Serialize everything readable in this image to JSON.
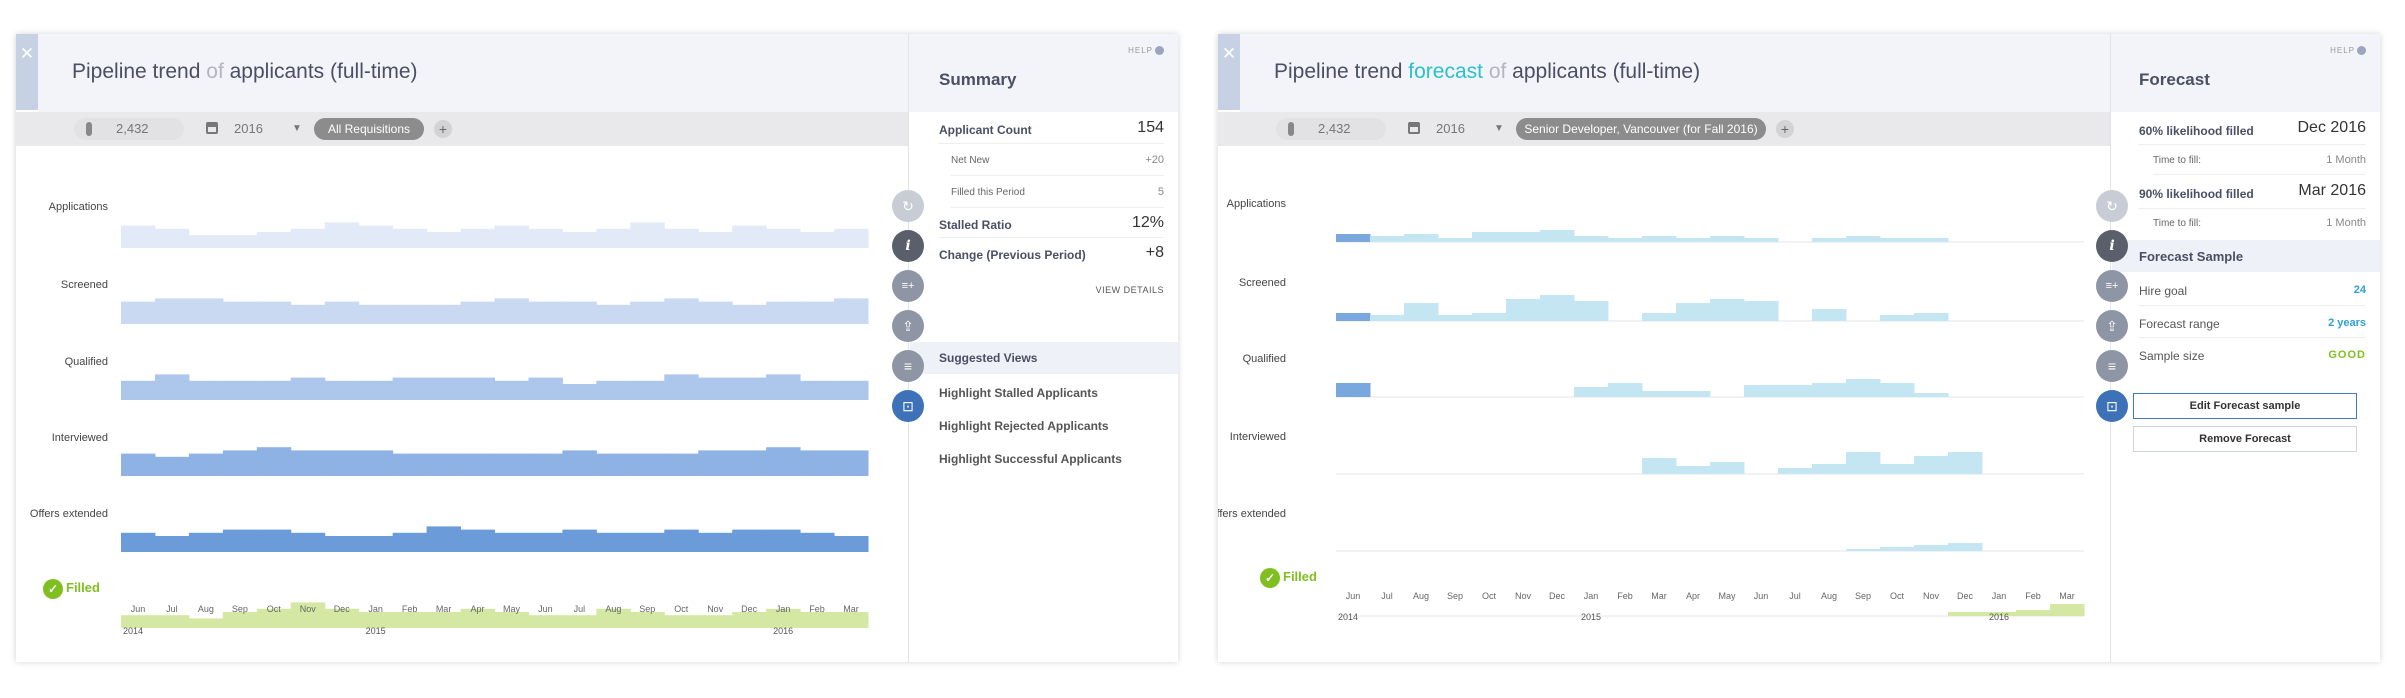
{
  "panels": [
    {
      "title_pre": "Pipeline trend",
      "title_hl": "",
      "title_of": "of",
      "title_post": "applicants (full-time)",
      "close": "✕",
      "count": "2,432",
      "year": "2016",
      "req": "All Requisitions",
      "plus": "+",
      "rows": [
        "Applications",
        "Screened",
        "Qualified",
        "Interviewed",
        "Offers extended"
      ],
      "filled": "Filled",
      "months": [
        "Jun",
        "Jul",
        "Aug",
        "Sep",
        "Oct",
        "Nov",
        "Dec",
        "Jan",
        "Feb",
        "Mar",
        "Apr",
        "May",
        "Jun",
        "Jul",
        "Aug",
        "Sep",
        "Oct",
        "Nov",
        "Dec",
        "Jan",
        "Feb",
        "Mar"
      ],
      "years": [
        "2014",
        "2015",
        "2016"
      ],
      "chart_data": {
        "type": "area",
        "colors": [
          "#e3eaf7",
          "#c9d9f2",
          "#adc6eb",
          "#8db2e3",
          "#6b9bd9",
          "#d4e8a3"
        ],
        "series": [
          {
            "values": [
              7,
              6,
              4,
              4,
              5,
              6,
              8,
              7,
              6,
              5,
              6,
              7,
              6,
              5,
              6,
              8,
              6,
              5,
              7,
              6,
              5,
              6
            ]
          },
          {
            "values": [
              7,
              8,
              8,
              7,
              7,
              6,
              7,
              6,
              6,
              6,
              7,
              8,
              7,
              7,
              6,
              7,
              8,
              7,
              6,
              7,
              7,
              8
            ]
          },
          {
            "values": [
              6,
              8,
              6,
              6,
              6,
              7,
              6,
              6,
              7,
              7,
              7,
              6,
              7,
              5,
              6,
              6,
              8,
              7,
              7,
              8,
              6,
              6
            ]
          },
          {
            "values": [
              7,
              6,
              7,
              8,
              9,
              8,
              8,
              8,
              7,
              7,
              7,
              7,
              7,
              8,
              7,
              7,
              7,
              8,
              8,
              9,
              8,
              8
            ]
          },
          {
            "values": [
              6,
              5,
              6,
              7,
              7,
              6,
              5,
              5,
              6,
              8,
              7,
              6,
              6,
              7,
              6,
              6,
              7,
              6,
              7,
              7,
              6,
              5
            ]
          },
          {
            "values": [
              4,
              4,
              3,
              5,
              6,
              8,
              6,
              5,
              5,
              5,
              6,
              5,
              4,
              4,
              6,
              5,
              4,
              4,
              5,
              6,
              5,
              5
            ]
          }
        ]
      }
    },
    {
      "title_pre": "Pipeline trend",
      "title_hl": "forecast",
      "title_of": "of",
      "title_post": "applicants (full-time)",
      "close": "✕",
      "count": "2,432",
      "year": "2016",
      "req": "Senior Developer, Vancouver (for Fall 2016)",
      "plus": "+",
      "rows": [
        "Applications",
        "Screened",
        "Qualified",
        "Interviewed",
        "Offers extended"
      ],
      "filled": "Filled",
      "months": [
        "Jun",
        "Jul",
        "Aug",
        "Sep",
        "Oct",
        "Nov",
        "Dec",
        "Jan",
        "Feb",
        "Mar",
        "Apr",
        "May",
        "Jun",
        "Jul",
        "Aug",
        "Sep",
        "Oct",
        "Nov",
        "Dec",
        "Jan",
        "Feb",
        "Mar"
      ],
      "years": [
        "2014",
        "2015",
        "2016"
      ],
      "chart_data": {
        "type": "area",
        "colors": [
          "#c4e6f3",
          "#c4e6f3",
          "#c4e6f3",
          "#c4e6f3",
          "#c4e6f3",
          "#d4e8a3"
        ],
        "highlight": "#7aa7dd",
        "series": [
          {
            "values": [
              4,
              3,
              4,
              2,
              5,
              5,
              6,
              3,
              2,
              3,
              2,
              3,
              2,
              0,
              2,
              3,
              2,
              2,
              0,
              0,
              0,
              0
            ]
          },
          {
            "values": [
              4,
              3,
              9,
              3,
              4,
              11,
              13,
              10,
              0,
              4,
              9,
              11,
              10,
              0,
              6,
              0,
              3,
              4,
              0,
              0,
              0,
              0
            ]
          },
          {
            "values": [
              7,
              0,
              0,
              0,
              0,
              0,
              0,
              5,
              7,
              3,
              3,
              0,
              6,
              6,
              7,
              9,
              7,
              2,
              0,
              0,
              0,
              0
            ]
          },
          {
            "values": [
              0,
              0,
              0,
              0,
              0,
              0,
              0,
              0,
              0,
              8,
              4,
              6,
              0,
              3,
              5,
              11,
              5,
              9,
              11,
              0,
              0,
              0
            ]
          },
          {
            "values": [
              0,
              0,
              0,
              0,
              0,
              0,
              0,
              0,
              0,
              0,
              0,
              0,
              0,
              0,
              0,
              1,
              2,
              3,
              4,
              0,
              0,
              0
            ]
          },
          {
            "values": [
              0,
              0,
              0,
              0,
              0,
              0,
              0,
              0,
              0,
              0,
              0,
              0,
              0,
              0,
              0,
              0,
              0,
              0,
              2,
              2,
              3,
              6
            ]
          }
        ]
      }
    }
  ],
  "summary": {
    "help": "HELP",
    "title": "Summary",
    "applicant_count_label": "Applicant Count",
    "applicant_count": "154",
    "net_new_label": "Net New",
    "net_new": "+20",
    "filled_label": "Filled this Period",
    "filled": "5",
    "stalled_label": "Stalled Ratio",
    "stalled": "12%",
    "change_label": "Change (Previous Period)",
    "change": "+8",
    "view_details": "VIEW DETAILS",
    "suggested": "Suggested Views",
    "links": [
      "Highlight Stalled Applicants",
      "Highlight Rejected Applicants",
      "Highlight Successful Applicants"
    ]
  },
  "forecast": {
    "help": "HELP",
    "title": "Forecast",
    "l60": "60% likelihood filled",
    "v60": "Dec 2016",
    "ttf_label": "Time to fill:",
    "ttf1": "1 Month",
    "l90": "90% likelihood filled",
    "v90": "Mar 2016",
    "ttf2": "1 Month",
    "sample_title": "Forecast Sample",
    "hire_label": "Hire goal",
    "hire": "24",
    "range_label": "Forecast range",
    "range": "2 years",
    "size_label": "Sample size",
    "size": "GOOD",
    "edit": "Edit Forecast sample",
    "remove": "Remove Forecast"
  },
  "tools": {
    "refresh": "↻",
    "info": "i",
    "add": "≡+",
    "share": "⇪",
    "sort": "≡",
    "focus": "⊡"
  }
}
